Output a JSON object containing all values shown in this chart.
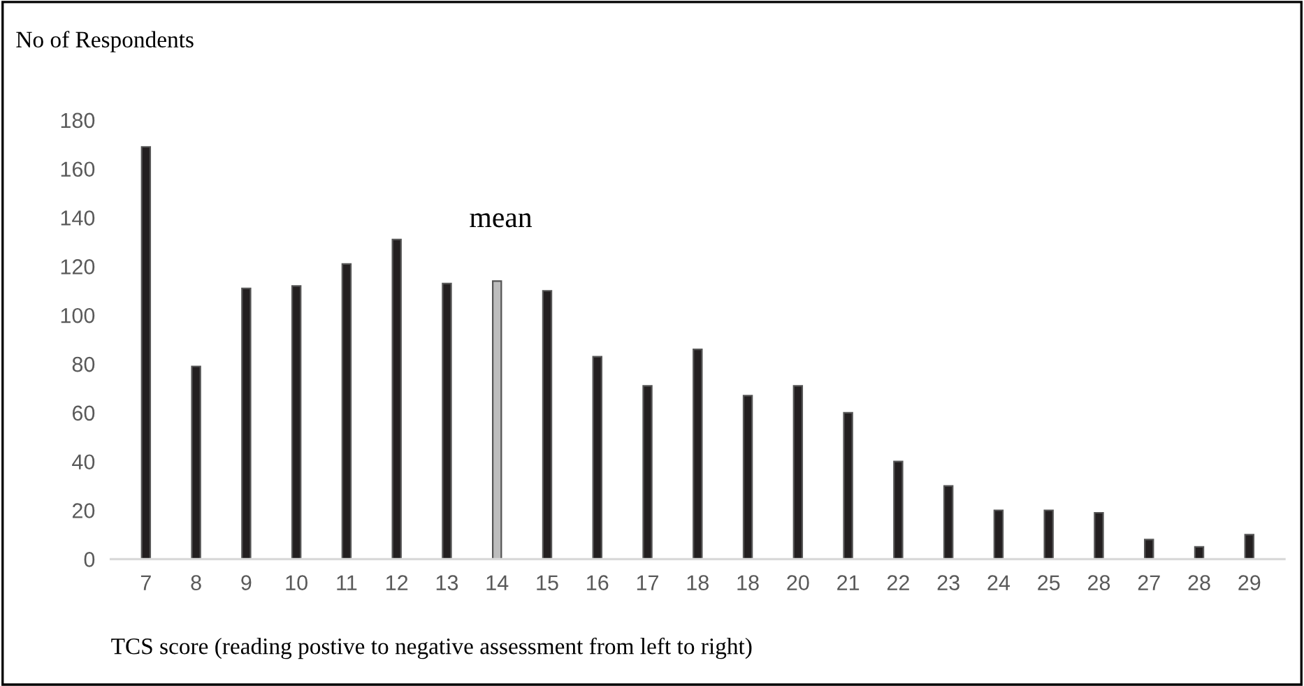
{
  "chart_data": {
    "type": "bar",
    "ylabel": "No of Respondents",
    "xlabel": "TCS score (reading postive to negative assessment from left to right)",
    "categories": [
      "7",
      "8",
      "9",
      "10",
      "11",
      "12",
      "13",
      "14",
      "15",
      "16",
      "17",
      "18",
      "18",
      "20",
      "21",
      "22",
      "23",
      "24",
      "25",
      "28",
      "27",
      "28",
      "29"
    ],
    "values": [
      169,
      79,
      111,
      112,
      121,
      131,
      113,
      114,
      110,
      83,
      71,
      86,
      67,
      71,
      60,
      40,
      30,
      20,
      20,
      19,
      8,
      5,
      10
    ],
    "colors": [
      "#231f20",
      "#231f20",
      "#231f20",
      "#231f20",
      "#231f20",
      "#231f20",
      "#231f20",
      "#bdbdbd",
      "#231f20",
      "#231f20",
      "#231f20",
      "#231f20",
      "#231f20",
      "#231f20",
      "#231f20",
      "#231f20",
      "#231f20",
      "#231f20",
      "#231f20",
      "#231f20",
      "#231f20",
      "#231f20",
      "#231f20"
    ],
    "ylim": [
      0,
      180
    ],
    "yticks": [
      0,
      20,
      40,
      60,
      80,
      100,
      120,
      140,
      160,
      180
    ],
    "annotations": [
      "mean"
    ],
    "grid": false,
    "legend": false
  }
}
